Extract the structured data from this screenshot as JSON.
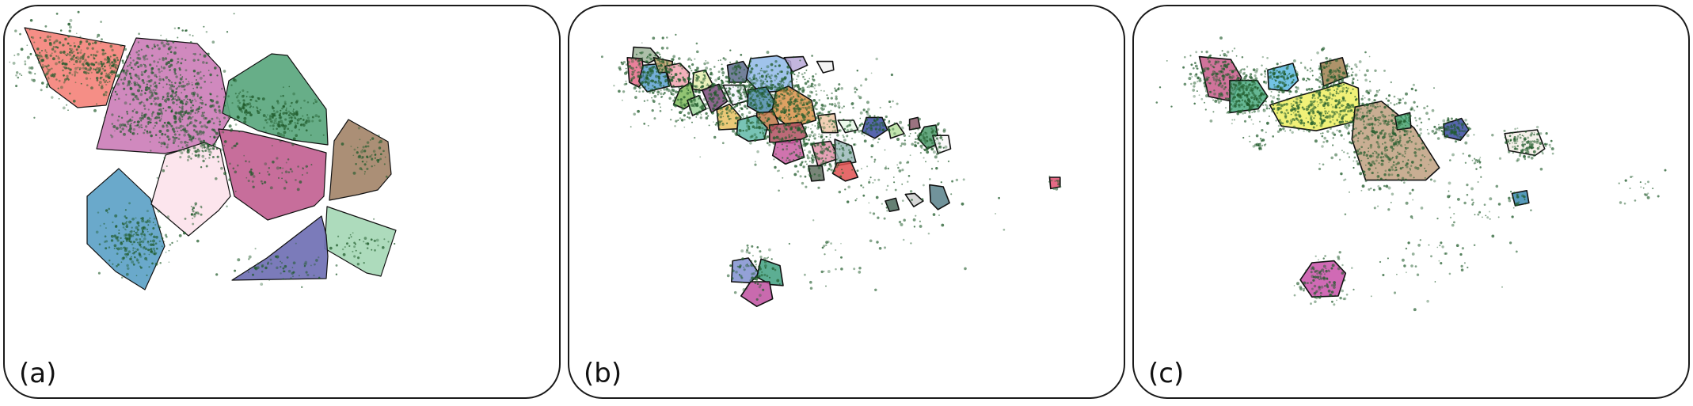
{
  "panels": [
    {
      "label": "(a)",
      "regions": [
        {
          "id": "a1",
          "color": "#f4847c"
        },
        {
          "id": "a2",
          "color": "#cc7fb8"
        },
        {
          "id": "a3",
          "color": "#5aa77e"
        },
        {
          "id": "a4",
          "color": "#c26293"
        },
        {
          "id": "a5",
          "color": "#a4856a"
        },
        {
          "id": "a6",
          "color": "#5da2c7"
        },
        {
          "id": "a7",
          "color": "#fce3ec"
        },
        {
          "id": "a8",
          "color": "#a6d8b6"
        },
        {
          "id": "a9",
          "color": "#7070b4"
        }
      ]
    },
    {
      "label": "(b)",
      "regions": [
        {
          "id": "b1",
          "color": "#9fb49a"
        },
        {
          "id": "b2",
          "color": "#e66a8a"
        },
        {
          "id": "b3",
          "color": "#5aa0d0"
        },
        {
          "id": "b4",
          "color": "#c0a26c"
        },
        {
          "id": "b5",
          "color": "#f2a3b0"
        },
        {
          "id": "b6",
          "color": "#7fba5a"
        },
        {
          "id": "b7",
          "color": "#9cd49a"
        },
        {
          "id": "b8",
          "color": "#e8f0b0"
        },
        {
          "id": "b9",
          "color": "#5a6a8a"
        },
        {
          "id": "b10",
          "color": "#8fb8e8"
        },
        {
          "id": "b11",
          "color": "#b8a8d8"
        },
        {
          "id": "b12",
          "color": "#f2f2f2"
        },
        {
          "id": "b13",
          "color": "#7a4a7a"
        },
        {
          "id": "b14",
          "color": "#e8c060"
        },
        {
          "id": "b15",
          "color": "#f6f6ff"
        },
        {
          "id": "b16",
          "color": "#4a8aa8"
        },
        {
          "id": "b17",
          "color": "#d89048"
        },
        {
          "id": "b18",
          "color": "#c07848"
        },
        {
          "id": "b19",
          "color": "#60b8a8"
        },
        {
          "id": "b20",
          "color": "#b05060"
        },
        {
          "id": "b21",
          "color": "#f0c8a8"
        },
        {
          "id": "b22",
          "color": "#e8f8e8"
        },
        {
          "id": "b23",
          "color": "#3a4aa0"
        },
        {
          "id": "b24",
          "color": "#b8e0a0"
        },
        {
          "id": "b25",
          "color": "#8a5a6a"
        },
        {
          "id": "b26",
          "color": "#4a9a6a"
        },
        {
          "id": "b27",
          "color": "#c85aa0"
        },
        {
          "id": "b28",
          "color": "#e090a8"
        },
        {
          "id": "b29",
          "color": "#9abab8"
        },
        {
          "id": "b30",
          "color": "#e05050"
        },
        {
          "id": "b31",
          "color": "#607060"
        },
        {
          "id": "b32",
          "color": "#d0d0d0"
        },
        {
          "id": "b33",
          "color": "#58808a"
        },
        {
          "id": "b34",
          "color": "#e05070"
        },
        {
          "id": "b35",
          "color": "#8090d0"
        },
        {
          "id": "b36",
          "color": "#40a080"
        },
        {
          "id": "b37",
          "color": "#c050a0"
        },
        {
          "id": "b38",
          "color": "#4a6a5a"
        },
        {
          "id": "b39",
          "color": "#f8f8f8"
        }
      ]
    },
    {
      "label": "(c)",
      "regions": [
        {
          "id": "c1",
          "color": "#c85a8a"
        },
        {
          "id": "c2",
          "color": "#4aaa80"
        },
        {
          "id": "c3",
          "color": "#5ab8e0"
        },
        {
          "id": "c4",
          "color": "#a08050"
        },
        {
          "id": "c5",
          "color": "#eeee60"
        },
        {
          "id": "c6",
          "color": "#c0a080"
        },
        {
          "id": "c7",
          "color": "#50b080"
        },
        {
          "id": "c8",
          "color": "#3a4aa0"
        },
        {
          "id": "c9",
          "color": "#f4eee8"
        },
        {
          "id": "c10",
          "color": "#3a88b0"
        },
        {
          "id": "c11",
          "color": "#c850a8"
        }
      ]
    }
  ],
  "point_color": "#1f5a2a"
}
